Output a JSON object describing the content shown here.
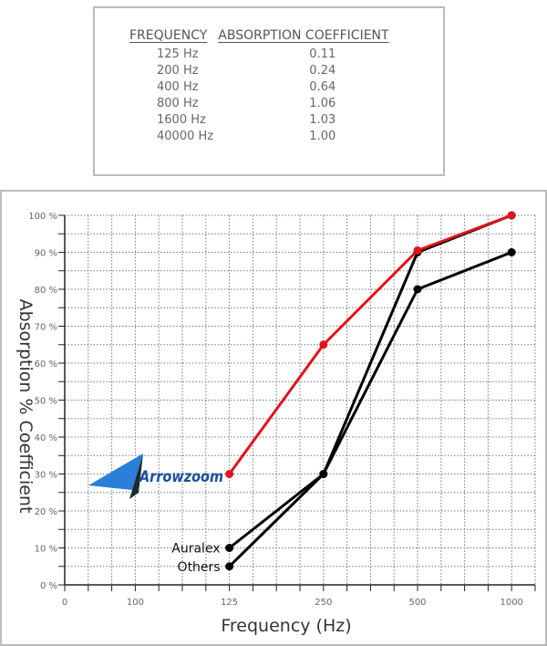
{
  "table": {
    "headers": [
      "FREQUENCY",
      "ABSORPTION COEFFICIENT"
    ],
    "rows": [
      [
        "125 Hz",
        "0.11"
      ],
      [
        "200 Hz",
        "0.24"
      ],
      [
        "400 Hz",
        "0.64"
      ],
      [
        "800 Hz",
        "1.06"
      ],
      [
        "1600 Hz",
        "1.03"
      ],
      [
        "40000 Hz",
        "1.00"
      ]
    ]
  },
  "logo_text": "Arrowzoom",
  "chart_data": {
    "type": "line",
    "xlabel": "Frequency (Hz)",
    "ylabel": "Absorption % Coefficient",
    "x_tick_labels": [
      "0",
      "100",
      "125",
      "250",
      "500",
      "1000"
    ],
    "y_tick_labels": [
      "0 %",
      "10 %",
      "20 %",
      "30 %",
      "40 %",
      "50 %",
      "60 %",
      "70 %",
      "80 %",
      "90 %",
      "100 %"
    ],
    "ylim": [
      0,
      100
    ],
    "grid": true,
    "x": [
      "125",
      "250",
      "500",
      "1000"
    ],
    "series": [
      {
        "label": "Arrowzoom",
        "color": "#e0141b",
        "values": [
          30,
          65,
          90.5,
          100
        ]
      },
      {
        "name": "Auralex",
        "color": "#000000",
        "values": [
          10,
          30,
          80,
          90
        ]
      },
      {
        "name": "Others",
        "color": "#000000",
        "values": [
          5,
          30,
          90,
          100
        ]
      }
    ]
  }
}
